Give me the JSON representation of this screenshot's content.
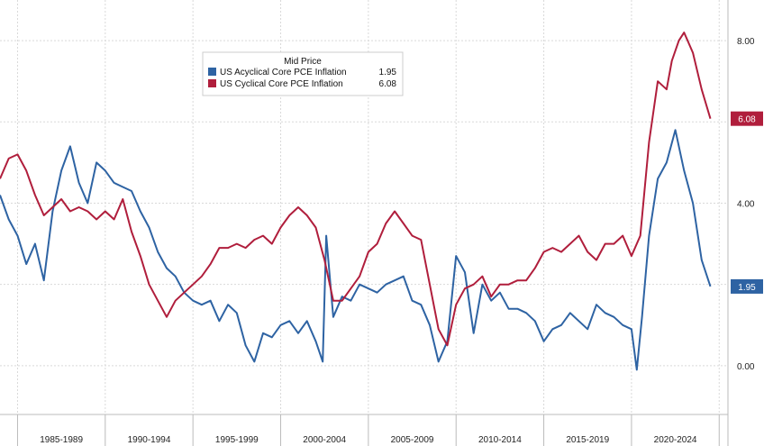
{
  "chart_data": {
    "type": "line",
    "legend": {
      "title": "Mid Price",
      "placement": "top-center"
    },
    "ylim": [
      -1.2,
      9.0
    ],
    "yticks": [
      0.0,
      4.0,
      8.0
    ],
    "ytick_labels": [
      "0.00",
      "4.00",
      "8.00"
    ],
    "grid": true,
    "x_periods": [
      "1985-1989",
      "1990-1994",
      "1995-1999",
      "2000-2004",
      "2005-2009",
      "2010-2014",
      "2015-2019",
      "2020-2024"
    ],
    "xlim": [
      1984.0,
      2025.5
    ],
    "series": [
      {
        "name": "US Acyclical Core PCE Inflation",
        "last_value": "1.95",
        "last_label": "1.95",
        "color": "#2e63a3",
        "x": [
          1984.0,
          1984.5,
          1985.0,
          1985.5,
          1986.0,
          1986.5,
          1987.0,
          1987.5,
          1988.0,
          1988.5,
          1989.0,
          1989.5,
          1990.0,
          1990.5,
          1991.0,
          1991.5,
          1992.0,
          1992.5,
          1993.0,
          1993.5,
          1994.0,
          1994.5,
          1995.0,
          1995.5,
          1996.0,
          1996.5,
          1997.0,
          1997.5,
          1998.0,
          1998.5,
          1999.0,
          1999.5,
          2000.0,
          2000.5,
          2001.0,
          2001.5,
          2002.0,
          2002.4,
          2002.6,
          2003.0,
          2003.5,
          2004.0,
          2004.5,
          2005.0,
          2005.5,
          2006.0,
          2006.5,
          2007.0,
          2007.5,
          2008.0,
          2008.5,
          2009.0,
          2009.5,
          2010.0,
          2010.5,
          2011.0,
          2011.5,
          2012.0,
          2012.5,
          2013.0,
          2013.5,
          2014.0,
          2014.5,
          2015.0,
          2015.5,
          2016.0,
          2016.5,
          2017.0,
          2017.5,
          2018.0,
          2018.5,
          2019.0,
          2019.5,
          2020.0,
          2020.3,
          2020.6,
          2021.0,
          2021.5,
          2022.0,
          2022.5,
          2023.0,
          2023.5,
          2024.0,
          2024.5
        ],
        "values": [
          4.2,
          3.6,
          3.2,
          2.5,
          3.0,
          2.1,
          3.8,
          4.8,
          5.4,
          4.5,
          4.0,
          5.0,
          4.8,
          4.5,
          4.4,
          4.3,
          3.8,
          3.4,
          2.8,
          2.4,
          2.2,
          1.8,
          1.6,
          1.5,
          1.6,
          1.1,
          1.5,
          1.3,
          0.5,
          0.1,
          0.8,
          0.7,
          1.0,
          1.1,
          0.8,
          1.1,
          0.6,
          0.1,
          3.2,
          1.2,
          1.7,
          1.6,
          2.0,
          1.9,
          1.8,
          2.0,
          2.1,
          2.2,
          1.6,
          1.5,
          1.0,
          0.1,
          0.6,
          2.7,
          2.3,
          0.8,
          2.0,
          1.6,
          1.8,
          1.4,
          1.4,
          1.3,
          1.1,
          0.6,
          0.9,
          1.0,
          1.3,
          1.1,
          0.9,
          1.5,
          1.3,
          1.2,
          1.0,
          0.9,
          -0.1,
          1.2,
          3.2,
          4.6,
          5.0,
          5.8,
          4.8,
          4.0,
          2.6,
          1.95
        ]
      },
      {
        "name": "US Cyclical Core PCE Inflation",
        "last_value": "6.08",
        "last_label": "6.08",
        "color": "#b01e3c",
        "x": [
          1984.0,
          1984.5,
          1985.0,
          1985.5,
          1986.0,
          1986.5,
          1987.0,
          1987.5,
          1988.0,
          1988.5,
          1989.0,
          1989.5,
          1990.0,
          1990.5,
          1991.0,
          1991.5,
          1992.0,
          1992.5,
          1993.0,
          1993.5,
          1994.0,
          1994.5,
          1995.0,
          1995.5,
          1996.0,
          1996.5,
          1997.0,
          1997.5,
          1998.0,
          1998.5,
          1999.0,
          1999.5,
          2000.0,
          2000.5,
          2001.0,
          2001.5,
          2002.0,
          2002.5,
          2003.0,
          2003.5,
          2004.0,
          2004.5,
          2005.0,
          2005.5,
          2006.0,
          2006.5,
          2007.0,
          2007.5,
          2008.0,
          2008.5,
          2009.0,
          2009.5,
          2010.0,
          2010.5,
          2011.0,
          2011.5,
          2012.0,
          2012.5,
          2013.0,
          2013.5,
          2014.0,
          2014.5,
          2015.0,
          2015.5,
          2016.0,
          2016.5,
          2017.0,
          2017.5,
          2018.0,
          2018.5,
          2019.0,
          2019.5,
          2020.0,
          2020.5,
          2021.0,
          2021.5,
          2022.0,
          2022.3,
          2022.7,
          2023.0,
          2023.5,
          2024.0,
          2024.5
        ],
        "values": [
          4.6,
          5.1,
          5.2,
          4.8,
          4.2,
          3.7,
          3.9,
          4.1,
          3.8,
          3.9,
          3.8,
          3.6,
          3.8,
          3.6,
          4.1,
          3.3,
          2.7,
          2.0,
          1.6,
          1.2,
          1.6,
          1.8,
          2.0,
          2.2,
          2.5,
          2.9,
          2.9,
          3.0,
          2.9,
          3.1,
          3.2,
          3.0,
          3.4,
          3.7,
          3.9,
          3.7,
          3.4,
          2.6,
          1.6,
          1.6,
          1.9,
          2.2,
          2.8,
          3.0,
          3.5,
          3.8,
          3.5,
          3.2,
          3.1,
          2.0,
          0.9,
          0.5,
          1.5,
          1.9,
          2.0,
          2.2,
          1.7,
          2.0,
          2.0,
          2.1,
          2.1,
          2.4,
          2.8,
          2.9,
          2.8,
          3.0,
          3.2,
          2.8,
          2.6,
          3.0,
          3.0,
          3.2,
          2.7,
          3.2,
          5.5,
          7.0,
          6.8,
          7.5,
          8.0,
          8.2,
          7.7,
          6.8,
          6.08
        ]
      }
    ]
  }
}
